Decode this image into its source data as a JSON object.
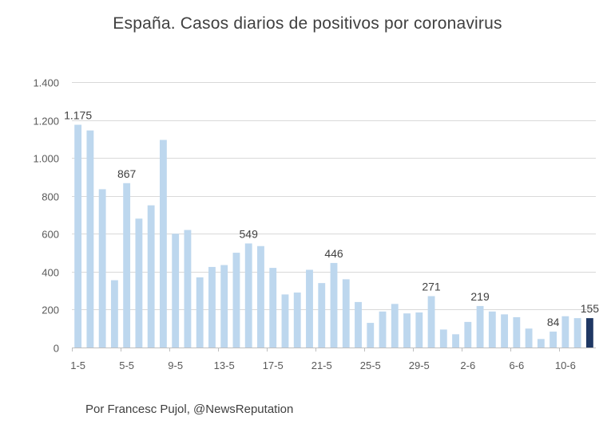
{
  "chart_data": {
    "type": "bar",
    "title": "España. Casos diarios de positivos por coronavirus",
    "xlabel": "",
    "ylabel": "",
    "ylim": [
      0,
      1400
    ],
    "yticks": [
      0,
      200,
      400,
      600,
      800,
      1000,
      1200,
      1400
    ],
    "ytick_labels": [
      "0",
      "200",
      "400",
      "600",
      "800",
      "1.000",
      "1.200",
      "1.400"
    ],
    "categories": [
      "1-5",
      "2-5",
      "3-5",
      "4-5",
      "5-5",
      "6-5",
      "7-5",
      "8-5",
      "9-5",
      "10-5",
      "11-5",
      "12-5",
      "13-5",
      "14-5",
      "15-5",
      "16-5",
      "17-5",
      "18-5",
      "19-5",
      "20-5",
      "21-5",
      "22-5",
      "23-5",
      "24-5",
      "25-5",
      "26-5",
      "27-5",
      "28-5",
      "29-5",
      "30-5",
      "31-5",
      "1-6",
      "2-6",
      "3-6",
      "4-6",
      "5-6",
      "6-6",
      "7-6",
      "8-6",
      "9-6",
      "10-6",
      "11-6",
      "12-6"
    ],
    "xtick_labels": [
      "1-5",
      "5-5",
      "9-5",
      "13-5",
      "17-5",
      "21-5",
      "25-5",
      "29-5",
      "2-6",
      "6-6",
      "10-6"
    ],
    "values": [
      1175,
      1145,
      835,
      355,
      867,
      680,
      750,
      1095,
      600,
      620,
      370,
      425,
      435,
      500,
      549,
      535,
      420,
      280,
      290,
      410,
      340,
      446,
      360,
      240,
      130,
      190,
      230,
      180,
      185,
      271,
      95,
      70,
      135,
      219,
      190,
      175,
      160,
      100,
      45,
      84,
      165,
      155,
      155
    ],
    "data_labels": [
      {
        "index": 0,
        "text": "1.175"
      },
      {
        "index": 4,
        "text": "867"
      },
      {
        "index": 14,
        "text": "549"
      },
      {
        "index": 21,
        "text": "446"
      },
      {
        "index": 29,
        "text": "271"
      },
      {
        "index": 33,
        "text": "219"
      },
      {
        "index": 39,
        "text": "84"
      },
      {
        "index": 42,
        "text": "155"
      }
    ],
    "highlight_index": 42,
    "grid": true,
    "legend": "none"
  },
  "colors": {
    "bar": "#bdd7ee",
    "highlight": "#1f3864",
    "grid": "#d9d9d9",
    "axis": "#bfbfbf"
  },
  "footer": {
    "credit": "Por Francesc Pujol, @NewsReputation"
  }
}
